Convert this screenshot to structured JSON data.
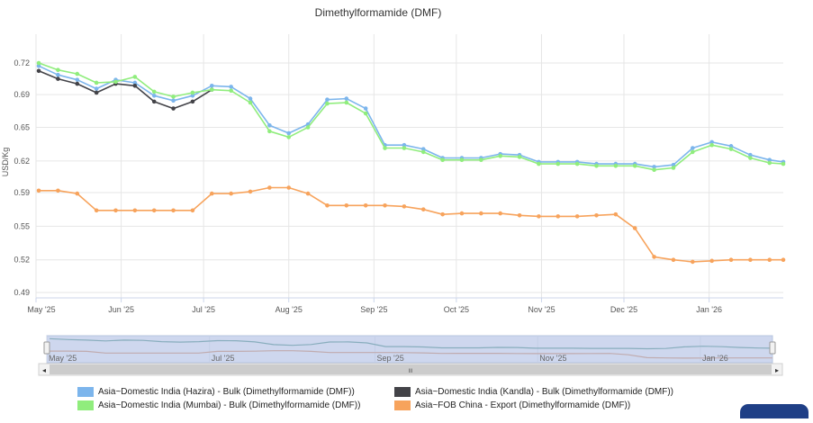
{
  "chart_data": {
    "type": "line",
    "title": "Dimethylformamide (DMF)",
    "xlabel": "",
    "ylabel": "USD/Kg",
    "ylim": [
      0.48,
      0.745
    ],
    "yticks": [
      "0.72",
      "0.69",
      "0.65",
      "0.62",
      "0.59",
      "0.55",
      "0.52",
      "0.49"
    ],
    "ytick_values": [
      0.72,
      0.688,
      0.655,
      0.621,
      0.589,
      0.555,
      0.521,
      0.488
    ],
    "x_labels": [
      "May '25",
      "Jun '25",
      "Jul '25",
      "Aug '25",
      "Sep '25",
      "Oct '25",
      "Nov '25",
      "Dec '25",
      "Jan '26"
    ],
    "x_tick_dates": [
      "2025-05-01",
      "2025-06-01",
      "2025-07-01",
      "2025-08-01",
      "2025-09-01",
      "2025-10-01",
      "2025-11-01",
      "2025-12-01",
      "2026-01-01"
    ],
    "x_end_date": "2026-01-28",
    "grid": true,
    "legend_position": "bottom",
    "series": [
      {
        "name": "Asia~Domestic India (Hazira) - Bulk (Dimethylformamide (DMF))",
        "color": "#7cb5ec",
        "x": [
          "2025-05-02",
          "2025-05-09",
          "2025-05-16",
          "2025-05-23",
          "2025-05-30",
          "2025-06-06",
          "2025-06-13",
          "2025-06-20",
          "2025-06-27",
          "2025-07-04",
          "2025-07-11",
          "2025-07-18",
          "2025-07-25",
          "2025-08-01",
          "2025-08-08",
          "2025-08-15",
          "2025-08-22",
          "2025-08-29",
          "2025-09-05",
          "2025-09-12",
          "2025-09-19",
          "2025-09-26",
          "2025-10-03",
          "2025-10-10",
          "2025-10-17",
          "2025-10-24",
          "2025-10-31",
          "2025-11-07",
          "2025-11-14",
          "2025-11-21",
          "2025-11-28",
          "2025-12-05",
          "2025-12-12",
          "2025-12-19",
          "2025-12-26",
          "2026-01-02",
          "2026-01-09",
          "2026-01-16",
          "2026-01-23",
          "2026-01-28"
        ],
        "y": [
          0.717,
          0.708,
          0.703,
          0.694,
          0.703,
          0.7,
          0.687,
          0.682,
          0.687,
          0.697,
          0.696,
          0.684,
          0.657,
          0.649,
          0.658,
          0.683,
          0.684,
          0.674,
          0.637,
          0.637,
          0.633,
          0.624,
          0.624,
          0.624,
          0.628,
          0.627,
          0.62,
          0.62,
          0.62,
          0.618,
          0.618,
          0.618,
          0.615,
          0.617,
          0.634,
          0.64,
          0.636,
          0.627,
          0.622,
          0.62
        ]
      },
      {
        "name": "Asia~Domestic India (Kandla) - Bulk (Dimethylformamide (DMF))",
        "color": "#434348",
        "x": [
          "2025-05-02",
          "2025-05-09",
          "2025-05-16",
          "2025-05-23",
          "2025-05-30",
          "2025-06-06",
          "2025-06-13",
          "2025-06-20",
          "2025-06-27",
          "2025-07-04"
        ],
        "y": [
          0.712,
          0.704,
          0.699,
          0.69,
          0.699,
          0.697,
          0.681,
          0.674,
          0.681,
          0.693
        ]
      },
      {
        "name": "Asia~Domestic India (Mumbai) - Bulk (Dimethylformamide (DMF))",
        "color": "#90ed7d",
        "x": [
          "2025-05-02",
          "2025-05-09",
          "2025-05-16",
          "2025-05-23",
          "2025-05-30",
          "2025-06-06",
          "2025-06-13",
          "2025-06-20",
          "2025-06-27",
          "2025-07-04",
          "2025-07-11",
          "2025-07-18",
          "2025-07-25",
          "2025-08-01",
          "2025-08-08",
          "2025-08-15",
          "2025-08-22",
          "2025-08-29",
          "2025-09-05",
          "2025-09-12",
          "2025-09-19",
          "2025-09-26",
          "2025-10-03",
          "2025-10-10",
          "2025-10-17",
          "2025-10-24",
          "2025-10-31",
          "2025-11-07",
          "2025-11-14",
          "2025-11-21",
          "2025-11-28",
          "2025-12-05",
          "2025-12-12",
          "2025-12-19",
          "2025-12-26",
          "2026-01-02",
          "2026-01-09",
          "2026-01-16",
          "2026-01-23",
          "2026-01-28"
        ],
        "y": [
          0.72,
          0.713,
          0.709,
          0.7,
          0.701,
          0.706,
          0.691,
          0.686,
          0.69,
          0.693,
          0.692,
          0.68,
          0.651,
          0.645,
          0.655,
          0.679,
          0.68,
          0.669,
          0.634,
          0.634,
          0.63,
          0.622,
          0.622,
          0.622,
          0.626,
          0.625,
          0.618,
          0.618,
          0.618,
          0.616,
          0.616,
          0.616,
          0.612,
          0.614,
          0.63,
          0.637,
          0.633,
          0.624,
          0.619,
          0.618
        ]
      },
      {
        "name": "Asia~FOB China - Export (Dimethylformamide (DMF))",
        "color": "#f7a35c",
        "x": [
          "2025-05-02",
          "2025-05-09",
          "2025-05-16",
          "2025-05-23",
          "2025-05-30",
          "2025-06-06",
          "2025-06-13",
          "2025-06-20",
          "2025-06-27",
          "2025-07-04",
          "2025-07-11",
          "2025-07-18",
          "2025-07-25",
          "2025-08-01",
          "2025-08-08",
          "2025-08-15",
          "2025-08-22",
          "2025-08-29",
          "2025-09-05",
          "2025-09-12",
          "2025-09-19",
          "2025-09-26",
          "2025-10-03",
          "2025-10-10",
          "2025-10-17",
          "2025-10-24",
          "2025-10-31",
          "2025-11-07",
          "2025-11-14",
          "2025-11-21",
          "2025-11-28",
          "2025-12-05",
          "2025-12-12",
          "2025-12-19",
          "2025-12-26",
          "2026-01-02",
          "2026-01-09",
          "2026-01-16",
          "2026-01-23",
          "2026-01-28"
        ],
        "y": [
          0.591,
          0.591,
          0.588,
          0.571,
          0.571,
          0.571,
          0.571,
          0.571,
          0.571,
          0.588,
          0.588,
          0.59,
          0.594,
          0.594,
          0.588,
          0.576,
          0.576,
          0.576,
          0.576,
          0.575,
          0.572,
          0.567,
          0.568,
          0.568,
          0.568,
          0.566,
          0.565,
          0.565,
          0.565,
          0.566,
          0.567,
          0.553,
          0.524,
          0.521,
          0.519,
          0.52,
          0.521,
          0.521,
          0.521,
          0.521
        ]
      }
    ],
    "navigator": {
      "labels": [
        "May '25",
        "Jul '25",
        "Sep '25",
        "Nov '25",
        "Jan '26"
      ],
      "label_dates": [
        "2025-05-01",
        "2025-07-01",
        "2025-09-01",
        "2025-11-01",
        "2026-01-01"
      ]
    }
  },
  "icons": {
    "scroll_left": "◂",
    "scroll_right": "▸",
    "scroll_grip": "III"
  }
}
